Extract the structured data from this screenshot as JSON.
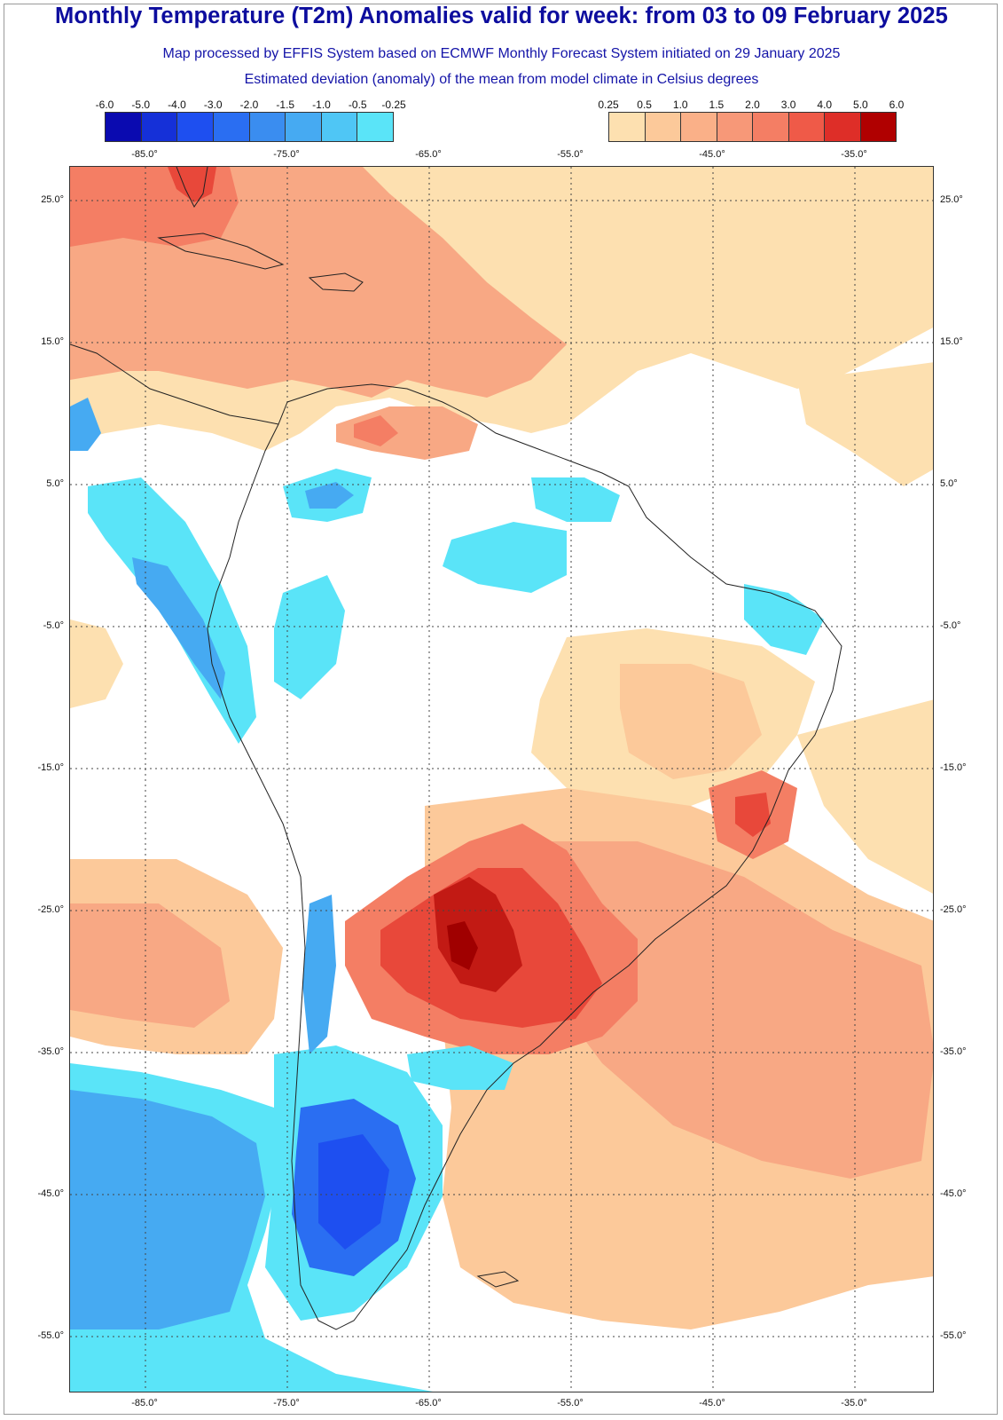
{
  "header": {
    "title": "Monthly Temperature (T2m) Anomalies valid for week: from 03 to 09 February 2025",
    "subtitle1": "Map processed by EFFIS System based on ECMWF Monthly Forecast System initiated on 29 January 2025",
    "subtitle2": "Estimated deviation (anomaly) of the mean from model climate in Celsius degrees"
  },
  "legend_cold": {
    "labels": [
      "-6.0",
      "-5.0",
      "-4.0",
      "-3.0",
      "-2.0",
      "-1.5",
      "-1.0",
      "-0.5",
      "-0.25"
    ],
    "colors": [
      "#0a0ab0",
      "#1530d8",
      "#1e4ff0",
      "#2a6ef2",
      "#3a8df0",
      "#46aaf2",
      "#4fc6f5",
      "#5ae4f8"
    ]
  },
  "legend_warm": {
    "labels": [
      "0.25",
      "0.5",
      "1.0",
      "1.5",
      "2.0",
      "3.0",
      "4.0",
      "5.0",
      "6.0"
    ],
    "colors": [
      "#fde0b0",
      "#fcc99a",
      "#fab088",
      "#f79878",
      "#f47e64",
      "#ef5a48",
      "#de2e28",
      "#b00000"
    ]
  },
  "map": {
    "lon_labels": [
      "-85.0°",
      "-75.0°",
      "-65.0°",
      "-55.0°",
      "-45.0°",
      "-35.0°"
    ],
    "lat_labels": [
      "25.0°",
      "15.0°",
      "5.0°",
      "-5.0°",
      "-15.0°",
      "-25.0°",
      "-35.0°",
      "-45.0°",
      "-55.0°"
    ],
    "colors": {
      "background": "#ffffff",
      "warm_light": "#fde0b0",
      "warm_mid": "#fcc99a",
      "warm": "#f8a884",
      "warm_strong": "#f47e64",
      "hot": "#e8483a",
      "very_hot": "#c21a14",
      "extreme": "#a00000",
      "cool_light": "#5ae4f8",
      "cool": "#46aaf2",
      "cold": "#2a6ef2",
      "very_cold": "#1e4ff0",
      "coast": "#222222"
    }
  }
}
